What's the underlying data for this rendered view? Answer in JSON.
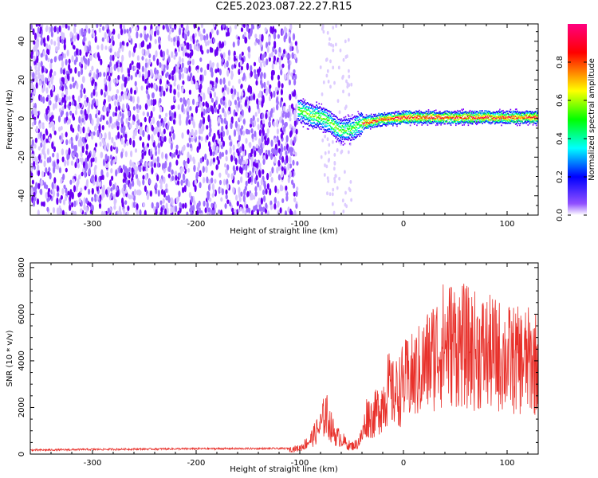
{
  "title": "C2E5.2023.087.22.27.R15",
  "chart_data": [
    {
      "type": "heatmap",
      "xlabel": "Height of straight line (km)",
      "ylabel": "Frequency (Hz)",
      "xlim": [
        -360,
        130
      ],
      "ylim": [
        -50,
        49
      ],
      "xticks": [
        -300,
        -200,
        -100,
        0,
        100
      ],
      "yticks": [
        -40,
        -20,
        0,
        20,
        40
      ],
      "colorbar": {
        "label": "Normalized spectral amplitude",
        "range": [
          0,
          1
        ],
        "ticks": [
          "0.0",
          "0.2",
          "0.4",
          "0.6",
          "0.8"
        ],
        "colormap": [
          "#ffffff",
          "#8000ff",
          "#0000ff",
          "#00ffff",
          "#00ff00",
          "#ffff00",
          "#ff0000",
          "#ff0080"
        ]
      },
      "regions": [
        {
          "name": "noise",
          "x_range": [
            -360,
            -102
          ],
          "freq_range": [
            -50,
            49
          ],
          "typical_amplitude": 0.05
        },
        {
          "name": "signal",
          "x_range": [
            -102,
            130
          ],
          "center_frequency": [
            [
              -102,
              5
            ],
            [
              -90,
              2
            ],
            [
              -75,
              0
            ],
            [
              -62,
              -6
            ],
            [
              -50,
              -5
            ],
            [
              -40,
              -2
            ],
            [
              -20,
              0
            ],
            [
              0,
              1
            ],
            [
              130,
              1
            ]
          ],
          "typical_amplitude": 0.85
        }
      ]
    },
    {
      "type": "line",
      "xlabel": "Height of straight line (km)",
      "ylabel": "SNR (10 * v/v)",
      "xlim": [
        -360,
        130
      ],
      "ylim": [
        0,
        8200
      ],
      "xticks": [
        -300,
        -200,
        -100,
        0,
        100
      ],
      "yticks": [
        0,
        2000,
        4000,
        6000,
        8000
      ],
      "color": "#e8302a",
      "series": [
        {
          "x": [
            -360,
            -300,
            -200,
            -110,
            -100,
            -90,
            -80,
            -75,
            -70,
            -65,
            -60,
            -55,
            -50,
            -45,
            -40,
            -35,
            -30,
            -25,
            -20,
            -15,
            -10,
            -5,
            0,
            10,
            20,
            30,
            40,
            50,
            60,
            70,
            80,
            90,
            100,
            110,
            120,
            130
          ],
          "y": [
            170,
            200,
            230,
            240,
            300,
            700,
            1400,
            2100,
            1400,
            900,
            800,
            500,
            400,
            500,
            900,
            2000,
            1800,
            2200,
            2600,
            3300,
            3000,
            3100,
            3600,
            3900,
            4400,
            5100,
            5600,
            5600,
            5400,
            5200,
            5100,
            5000,
            4800,
            4700,
            4700,
            4600
          ]
        }
      ]
    }
  ]
}
